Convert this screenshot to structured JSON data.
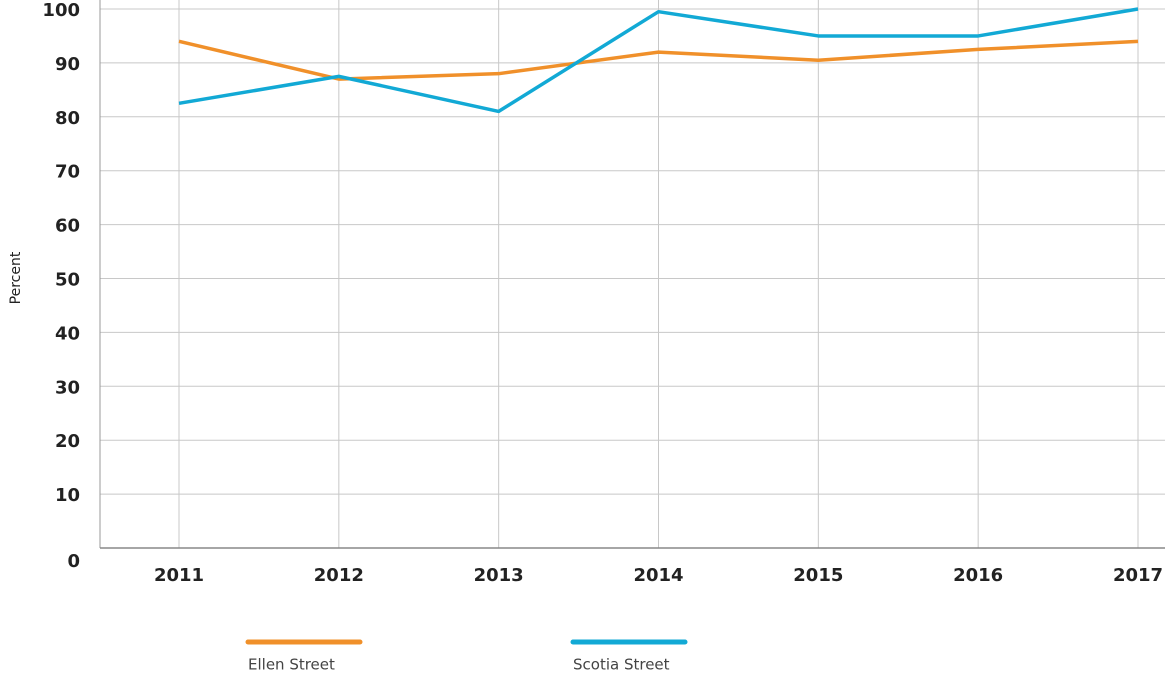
{
  "chart_data": {
    "type": "line",
    "y_axis_label": "Percent",
    "categories": [
      "2011",
      "2012",
      "2013",
      "2014",
      "2015",
      "2016",
      "2017"
    ],
    "series": [
      {
        "name": "Ellen Street",
        "color": "#f0902a",
        "values": [
          94,
          87,
          88,
          92,
          90.5,
          92.5,
          94
        ]
      },
      {
        "name": "Scotia Street",
        "color": "#12a9d5",
        "values": [
          82.5,
          87.5,
          81,
          99.5,
          95,
          95,
          100
        ]
      }
    ],
    "ylim": [
      0,
      100
    ],
    "yticks": [
      0,
      10,
      20,
      30,
      40,
      50,
      60,
      70,
      80,
      90,
      100
    ],
    "grid": true
  }
}
